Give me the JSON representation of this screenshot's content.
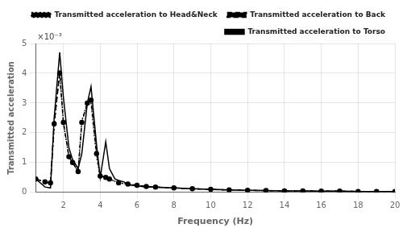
{
  "chart_data": {
    "type": "line",
    "xlabel": "Frequency (Hz)",
    "ylabel": "Transmitted acceleration",
    "annotation": "×10⁻³",
    "xlim": [
      0.5,
      20
    ],
    "ylim": [
      0,
      0.005
    ],
    "xticks": [
      2,
      4,
      6,
      8,
      10,
      12,
      14,
      16,
      18,
      20
    ],
    "yticks": [
      0,
      {
        "value": 0.001,
        "label": "1"
      },
      {
        "value": 0.002,
        "label": "2"
      },
      {
        "value": 0.003,
        "label": "3"
      },
      {
        "value": 0.004,
        "label": "4"
      },
      {
        "value": 0.005,
        "label": "5"
      }
    ],
    "grid": true,
    "legend": "upper right",
    "series": [
      {
        "name": "Transmitted acceleration to Head&Neck",
        "color": "black",
        "line_style": "dotted",
        "x": [
          0.5,
          1.0,
          1.3,
          1.5,
          1.8,
          2.0,
          2.3,
          2.5,
          2.8,
          3.0,
          3.3,
          3.5,
          3.8,
          4.0,
          4.3,
          4.5,
          5.0,
          5.5,
          6.0,
          6.5,
          7.0,
          8.0,
          9.0,
          10.0,
          11.0,
          12.0,
          13.0,
          14.0,
          15.0,
          16.0,
          17.0,
          18.0,
          19.0,
          20.0
        ],
        "values": [
          0.00045,
          0.00035,
          0.0003,
          0.0022,
          0.0041,
          0.00235,
          0.0012,
          0.001,
          0.0007,
          0.0024,
          0.003,
          0.003,
          0.0012,
          0.00055,
          0.0005,
          0.00045,
          0.00032,
          0.00028,
          0.00024,
          0.0002,
          0.00018,
          0.00015,
          0.00012,
          0.0001,
          8e-05,
          7e-05,
          6e-05,
          5e-05,
          5e-05,
          4e-05,
          4e-05,
          3e-05,
          3e-05,
          3e-05
        ]
      },
      {
        "name": "Transmitted acceleration to Back",
        "color": "black",
        "line_style": "dashed",
        "marker": "circle",
        "x": [
          0.5,
          1.0,
          1.3,
          1.5,
          1.8,
          2.0,
          2.3,
          2.5,
          2.8,
          3.0,
          3.3,
          3.5,
          3.8,
          4.0,
          4.3,
          4.5,
          5.0,
          5.5,
          6.0,
          6.5,
          7.0,
          8.0,
          9.0,
          10.0,
          11.0,
          12.0,
          13.0,
          14.0,
          15.0,
          16.0,
          17.0,
          18.0,
          19.0,
          20.0
        ],
        "values": [
          0.00045,
          0.00035,
          0.00032,
          0.0023,
          0.004,
          0.00235,
          0.0012,
          0.001,
          0.0007,
          0.00235,
          0.003,
          0.0031,
          0.0013,
          0.00055,
          0.0005,
          0.00045,
          0.00032,
          0.00028,
          0.00024,
          0.0002,
          0.00018,
          0.00015,
          0.00012,
          0.0001,
          8e-05,
          7e-05,
          6e-05,
          5e-05,
          5e-05,
          4e-05,
          4e-05,
          3e-05,
          3e-05,
          3e-05
        ]
      },
      {
        "name": "Transmitted acceleration to Torso",
        "color": "black",
        "line_style": "solid",
        "x": [
          0.5,
          1.0,
          1.3,
          1.5,
          1.8,
          2.0,
          2.3,
          2.5,
          2.8,
          3.0,
          3.3,
          3.5,
          3.8,
          4.0,
          4.3,
          4.5,
          4.8,
          5.0,
          5.3,
          5.5,
          6.0,
          6.5,
          7.0,
          7.5,
          8.0,
          9.0,
          10.0,
          11.0,
          12.0,
          13.0,
          14.0,
          15.0,
          16.0,
          17.0,
          18.0,
          19.0,
          20.0
        ],
        "values": [
          0.00045,
          0.00018,
          0.00015,
          0.0025,
          0.0047,
          0.0032,
          0.0015,
          0.0011,
          0.0008,
          0.0013,
          0.003,
          0.00355,
          0.0016,
          0.0005,
          0.0017,
          0.0008,
          0.00045,
          0.0004,
          0.00035,
          0.00025,
          0.00022,
          0.00018,
          0.00018,
          0.00016,
          0.00015,
          0.00012,
          0.0001,
          8e-05,
          7e-05,
          6e-05,
          5e-05,
          5e-05,
          4e-05,
          4e-05,
          3e-05,
          3e-05,
          3e-05
        ]
      }
    ]
  }
}
